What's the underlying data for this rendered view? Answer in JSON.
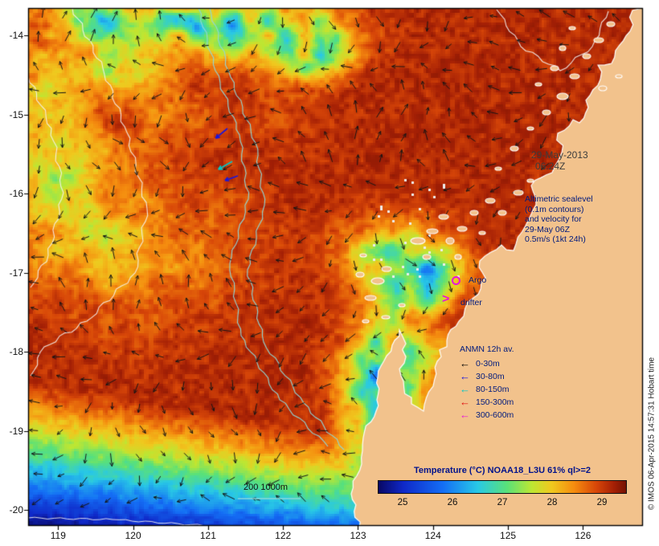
{
  "figure": {
    "timestamp": {
      "line1": "29-May-2013",
      "line2": "06:24Z"
    },
    "altimetric_note_lines": [
      "Altimetric sealevel",
      "(0.1m contours)",
      "and velocity for",
      "29-May 06Z",
      "0.5m/s (1kt 24h)"
    ],
    "argo_label": "Argo",
    "drifter_label": "drifter",
    "drifter_marker_glyph": ">",
    "anmn_legend": {
      "title": "ANMN 12h av.",
      "entries": [
        {
          "label": "0-30m",
          "color": "#000000"
        },
        {
          "label": "30-80m",
          "color": "#1515e0"
        },
        {
          "label": "80-150m",
          "color": "#00c8c8"
        },
        {
          "label": "150-300m",
          "color": "#e01010"
        },
        {
          "label": "300-600m",
          "color": "#e816d8"
        }
      ]
    },
    "depth_scale_label": "200 1000m",
    "copyright_vertical": "© IMOS 06-Apr-2015 14:57:31 Hobart time"
  },
  "colors": {
    "land": "#f2c28c",
    "frame": "#000000",
    "sealevel_contour": "#f4f4f4",
    "bathymetry_contour": "#8fd8d8",
    "velocity_vector": "#151515",
    "marker_magenta": "#e816d8",
    "annotation_navy": "#001a7d"
  },
  "chart_data": {
    "type": "heatmap",
    "title": "Temperature (°C) NOAA18_L3U 61% ql>=2",
    "x_ticks": [
      119,
      120,
      121,
      122,
      123,
      124,
      125,
      126
    ],
    "x_range": [
      118.6,
      126.8
    ],
    "y_ticks": [
      -14,
      -15,
      -16,
      -17,
      -18,
      -19,
      -20
    ],
    "y_range": [
      -20.2,
      -13.65
    ],
    "colorbar": {
      "ticks": [
        25,
        26,
        27,
        28,
        29
      ],
      "range": [
        24.5,
        29.5
      ]
    },
    "colormap": [
      {
        "v": 24.3,
        "c": [
          8,
          8,
          100
        ]
      },
      {
        "v": 25.0,
        "c": [
          15,
          40,
          200
        ]
      },
      {
        "v": 25.8,
        "c": [
          20,
          110,
          245
        ]
      },
      {
        "v": 26.5,
        "c": [
          40,
          200,
          230
        ]
      },
      {
        "v": 27.1,
        "c": [
          90,
          225,
          120
        ]
      },
      {
        "v": 27.6,
        "c": [
          190,
          230,
          50
        ]
      },
      {
        "v": 28.0,
        "c": [
          240,
          200,
          30
        ]
      },
      {
        "v": 28.45,
        "c": [
          245,
          140,
          15
        ]
      },
      {
        "v": 28.9,
        "c": [
          215,
          70,
          8
        ]
      },
      {
        "v": 29.25,
        "c": [
          165,
          32,
          5
        ]
      },
      {
        "v": 29.6,
        "c": [
          115,
          18,
          3
        ]
      }
    ],
    "overlays": [
      "altimetric sealevel contours (0.1m)",
      "surface velocity vectors (0.5m/s = 1kt 24h)",
      "bathymetry contours 200m and 1000m",
      "ANMN 12h averaged mooring vectors",
      "Argo float position",
      "drifter position"
    ]
  }
}
